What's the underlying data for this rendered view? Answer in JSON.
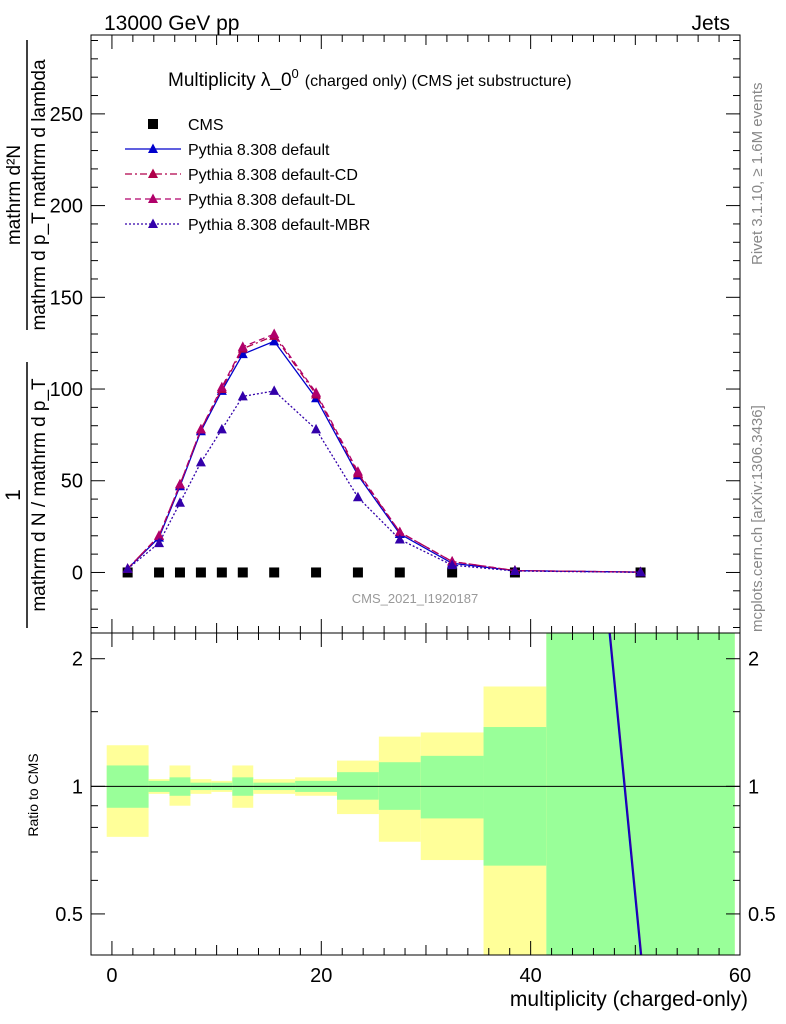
{
  "header": {
    "left": "13000 GeV pp",
    "right": "Jets"
  },
  "side_labels": {
    "rivet": "Rivet 3.1.10, ≥ 1.6M events",
    "mcplots": "mcplots.cern.ch [arXiv:1306.3436]"
  },
  "chart_data": [
    {
      "type": "line",
      "title_main": "Multiplicity λ_0",
      "title_sup": "0",
      "title_tail": "(charged only) (CMS jet substructure)",
      "analysis_label": "CMS_2021_I1920187",
      "ylabel_frac_top": "mathrm d²N",
      "ylabel_frac_den": "mathrm d p_T mathrm d lambda",
      "ylabel_one": "1",
      "ylabel_den": "mathrm d N / mathrm d p_T",
      "xlim": [
        -2,
        60
      ],
      "ylim": [
        -33,
        293
      ],
      "yticks": [
        0,
        50,
        100,
        150,
        200,
        250
      ],
      "series": [
        {
          "name": "CMS",
          "color": "#000000",
          "style": "marker",
          "x": [
            1.5,
            4.5,
            6.5,
            8.5,
            10.5,
            12.5,
            15.5,
            19.5,
            23.5,
            27.5,
            32.5,
            38.5,
            50.5
          ],
          "y": [
            0,
            0,
            0,
            0,
            0,
            0,
            0,
            0,
            0,
            0,
            0,
            0,
            0
          ]
        },
        {
          "name": "Pythia 8.308 default",
          "color": "#0000cc",
          "style": "solid",
          "x": [
            1.5,
            4.5,
            6.5,
            8.5,
            10.5,
            12.5,
            15.5,
            19.5,
            23.5,
            27.5,
            32.5,
            38.5,
            50.5
          ],
          "y": [
            2,
            19,
            47,
            77,
            99,
            119,
            126,
            95,
            53,
            21,
            5,
            1,
            0.2
          ]
        },
        {
          "name": "Pythia 8.308 default-CD",
          "color": "#b0004a",
          "style": "dashdot",
          "x": [
            1.5,
            4.5,
            6.5,
            8.5,
            10.5,
            12.5,
            15.5,
            19.5,
            23.5,
            27.5,
            32.5,
            38.5,
            50.5
          ],
          "y": [
            2,
            20,
            48,
            78,
            100,
            122,
            129,
            97,
            54,
            22,
            6,
            1,
            0.2
          ]
        },
        {
          "name": "Pythia 8.308 default-DL",
          "color": "#b0006a",
          "style": "dashed",
          "x": [
            1.5,
            4.5,
            6.5,
            8.5,
            10.5,
            12.5,
            15.5,
            19.5,
            23.5,
            27.5,
            32.5,
            38.5,
            50.5
          ],
          "y": [
            2,
            20,
            48,
            78,
            101,
            123,
            130,
            98,
            55,
            22,
            6,
            1,
            0.2
          ]
        },
        {
          "name": "Pythia 8.308 default-MBR",
          "color": "#3300aa",
          "style": "dotted",
          "x": [
            1.5,
            4.5,
            6.5,
            8.5,
            10.5,
            12.5,
            15.5,
            19.5,
            23.5,
            27.5,
            32.5,
            38.5,
            50.5
          ],
          "y": [
            2,
            16,
            38,
            60,
            78,
            96,
            99,
            78,
            41,
            18,
            4,
            0.8,
            0.1
          ]
        }
      ]
    },
    {
      "type": "area",
      "ylabel": "Ratio to CMS",
      "xlabel": "multiplicity (charged-only)",
      "xlim": [
        -2,
        60
      ],
      "ylim": [
        0.4,
        2.3
      ],
      "xticks": [
        0,
        20,
        40,
        60
      ],
      "yticks": [
        0.5,
        1,
        2
      ],
      "bands": [
        {
          "x0": -0.5,
          "x1": 3.5,
          "yellow": [
            0.76,
            1.25
          ],
          "green": [
            0.89,
            1.12
          ]
        },
        {
          "x0": 3.5,
          "x1": 5.5,
          "yellow": [
            0.96,
            1.04
          ],
          "green": [
            0.97,
            1.03
          ]
        },
        {
          "x0": 5.5,
          "x1": 7.5,
          "yellow": [
            0.9,
            1.12
          ],
          "green": [
            0.95,
            1.05
          ]
        },
        {
          "x0": 7.5,
          "x1": 9.5,
          "yellow": [
            0.96,
            1.04
          ],
          "green": [
            0.98,
            1.02
          ]
        },
        {
          "x0": 9.5,
          "x1": 11.5,
          "yellow": [
            0.97,
            1.03
          ],
          "green": [
            0.98,
            1.02
          ]
        },
        {
          "x0": 11.5,
          "x1": 13.5,
          "yellow": [
            0.89,
            1.12
          ],
          "green": [
            0.95,
            1.05
          ]
        },
        {
          "x0": 13.5,
          "x1": 17.5,
          "yellow": [
            0.96,
            1.04
          ],
          "green": [
            0.98,
            1.02
          ]
        },
        {
          "x0": 17.5,
          "x1": 21.5,
          "yellow": [
            0.95,
            1.05
          ],
          "green": [
            0.97,
            1.03
          ]
        },
        {
          "x0": 21.5,
          "x1": 25.5,
          "yellow": [
            0.86,
            1.15
          ],
          "green": [
            0.93,
            1.08
          ]
        },
        {
          "x0": 25.5,
          "x1": 29.5,
          "yellow": [
            0.74,
            1.31
          ],
          "green": [
            0.88,
            1.14
          ]
        },
        {
          "x0": 29.5,
          "x1": 35.5,
          "yellow": [
            0.67,
            1.34
          ],
          "green": [
            0.84,
            1.18
          ]
        },
        {
          "x0": 35.5,
          "x1": 41.5,
          "yellow": [
            0.34,
            1.72
          ],
          "green": [
            0.65,
            1.38
          ]
        },
        {
          "x0": 41.5,
          "x1": 59.5,
          "yellow": [
            0.3,
            2.4
          ],
          "green": [
            0.3,
            2.4
          ]
        }
      ],
      "reference_line": 1,
      "ratio_series": [
        {
          "name": "Pythia 8.308 default",
          "color": "#0000cc",
          "x": [
            47.5,
            50.5
          ],
          "y": [
            2.3,
            0.38
          ]
        },
        {
          "name": "Pythia 8.308 default-MBR",
          "color": "#3300aa",
          "x": [
            47.6,
            50.6
          ],
          "y": [
            2.3,
            0.38
          ]
        }
      ]
    }
  ]
}
